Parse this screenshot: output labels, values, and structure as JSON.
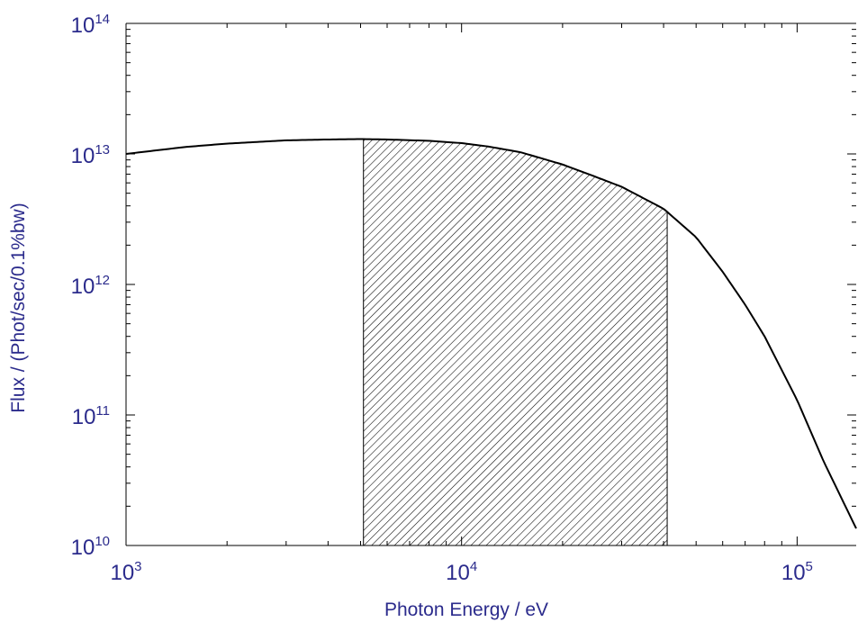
{
  "chart_data": {
    "type": "line",
    "title": "",
    "xlabel": "Photon Energy / eV",
    "ylabel": "Flux / (Phot/sec/0.1%bw)",
    "xscale": "log",
    "yscale": "log",
    "xlim": [
      1000,
      150000
    ],
    "ylim": [
      10000000000.0,
      100000000000000.0
    ],
    "grid": false,
    "legend": "none",
    "x_ticks": [
      {
        "value": 1000,
        "base": "10",
        "exp": "3"
      },
      {
        "value": 10000,
        "base": "10",
        "exp": "4"
      },
      {
        "value": 100000,
        "base": "10",
        "exp": "5"
      }
    ],
    "y_ticks": [
      {
        "value": 10000000000.0,
        "base": "10",
        "exp": "10"
      },
      {
        "value": 100000000000.0,
        "base": "10",
        "exp": "11"
      },
      {
        "value": 1000000000000.0,
        "base": "10",
        "exp": "12"
      },
      {
        "value": 10000000000000.0,
        "base": "10",
        "exp": "13"
      },
      {
        "value": 100000000000000.0,
        "base": "10",
        "exp": "14"
      }
    ],
    "series": [
      {
        "x": [
          1000,
          1500,
          2000,
          3000,
          4000,
          5000,
          6000,
          8000,
          10000,
          12000,
          15000,
          20000,
          25000,
          30000,
          40000,
          50000,
          60000,
          70000,
          80000,
          100000,
          120000,
          150000
        ],
        "y": [
          10000000000000.0,
          11300000000000.0,
          12000000000000.0,
          12700000000000.0,
          12900000000000.0,
          13000000000000.0,
          12900000000000.0,
          12600000000000.0,
          12100000000000.0,
          11400000000000.0,
          10300000000000.0,
          8300000000000.0,
          6700000000000.0,
          5600000000000.0,
          3800000000000.0,
          2300000000000.0,
          1250000000000.0,
          700000000000.0,
          400000000000.0,
          130000000000.0,
          44000000000.0,
          13500000000.0
        ]
      }
    ],
    "shaded_region": {
      "x_start": 5100,
      "x_end": 41000,
      "pattern": "hatched"
    },
    "colors": {
      "text": "#2b2b8c",
      "line": "#000000",
      "axis": "#000000"
    }
  }
}
